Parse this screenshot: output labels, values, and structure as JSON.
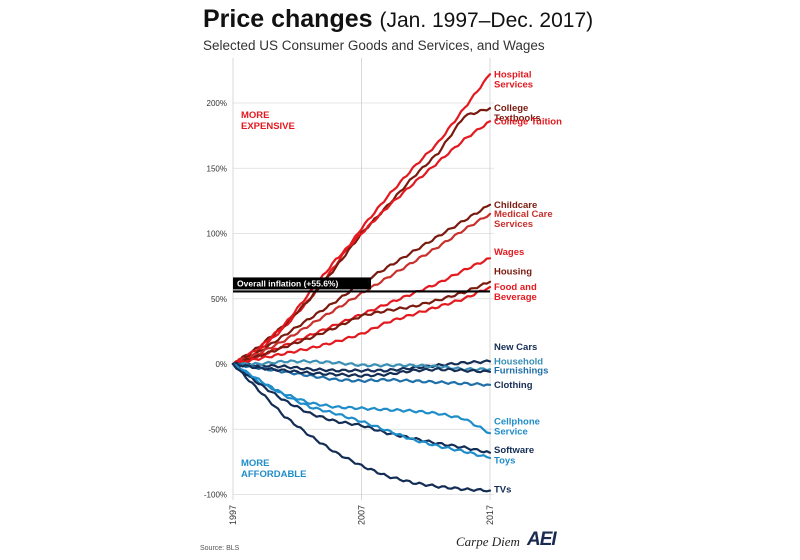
{
  "header": {
    "title_main": "Price changes",
    "title_range": "(Jan. 1997–Dec. 2017)",
    "subtitle": "Selected US Consumer Goods and Services, and Wages"
  },
  "footer": {
    "source": "Source: BLS",
    "brand": "Carpe Diem",
    "logo": "AEI"
  },
  "chart_data": {
    "type": "line",
    "title": "Price changes (Jan. 1997–Dec. 2017)",
    "subtitle": "Selected US Consumer Goods and Services, and Wages",
    "xlim": [
      1997,
      2017
    ],
    "ylim": [
      -100,
      230
    ],
    "y_ticks": [
      -100,
      -50,
      0,
      50,
      100,
      150,
      200
    ],
    "y_tick_labels": [
      "-100%",
      "-50%",
      "0%",
      "50%",
      "100%",
      "150%",
      "200%"
    ],
    "x_ticks": [
      1997,
      2007,
      2017
    ],
    "x_tick_labels": [
      "1997",
      "2007",
      "2017"
    ],
    "grid": true,
    "legend": "direct labels at right end of lines",
    "zones": {
      "expensive": "MORE\nEXPENSIVE",
      "affordable": "MORE\nAFFORDABLE"
    },
    "zone_colors": {
      "expensive": "#e3191f",
      "affordable": "#1f8dc9"
    },
    "reference_line": {
      "label": "Overall inflation (+55.6%)",
      "value": 55.6,
      "color": "#000000"
    },
    "x": [
      1997,
      1999,
      2001,
      2003,
      2005,
      2007,
      2009,
      2011,
      2013,
      2015,
      2017
    ],
    "series": [
      {
        "name": "Hospital\nServices",
        "color": "#e3191f",
        "label_y": 222,
        "values": [
          0,
          10,
          28,
          50,
          76,
          104,
          128,
          150,
          170,
          196,
          222
        ]
      },
      {
        "name": "College\nTextbooks",
        "color": "#7a1a0f",
        "label_y": 196,
        "values": [
          0,
          13,
          30,
          50,
          74,
          100,
          121,
          143,
          162,
          190,
          196
        ]
      },
      {
        "name": "College Tuition",
        "color": "#e3191f",
        "label_y": 186,
        "values": [
          0,
          12,
          30,
          55,
          80,
          100,
          120,
          138,
          155,
          172,
          186
        ]
      },
      {
        "name": "Childcare",
        "color": "#7a1a0f",
        "label_y": 122,
        "values": [
          0,
          9,
          22,
          35,
          48,
          62,
          74,
          86,
          98,
          110,
          122
        ]
      },
      {
        "name": "Medical Care\nServices",
        "color": "#c8302c",
        "label_y": 115,
        "values": [
          0,
          8,
          18,
          30,
          42,
          54,
          66,
          78,
          90,
          103,
          115
        ]
      },
      {
        "name": "Wages",
        "color": "#e3191f",
        "label_y": 86,
        "values": [
          0,
          6,
          14,
          22,
          30,
          38,
          46,
          54,
          62,
          72,
          81
        ]
      },
      {
        "name": "Housing",
        "color": "#7a1a0f",
        "label_y": 71,
        "values": [
          0,
          6,
          13,
          20,
          28,
          37,
          41,
          44,
          49,
          55,
          63
        ]
      },
      {
        "name": "Food and\nBeverage",
        "color": "#e3191f",
        "label_y": 59,
        "values": [
          0,
          4,
          8,
          12,
          17,
          23,
          32,
          38,
          44,
          50,
          59
        ]
      },
      {
        "name": "New Cars",
        "color": "#142d55",
        "label_y": 13,
        "values": [
          0,
          -1,
          -2,
          -4,
          -5,
          -5,
          -5,
          -3,
          -1,
          1,
          2
        ]
      },
      {
        "name": "Household",
        "color": "#3a8fb5",
        "label_y": 2,
        "values": [
          0,
          0,
          2,
          2,
          1,
          -1,
          -1,
          -1,
          -2,
          -4,
          -4
        ]
      },
      {
        "name": "Furnishings",
        "color": "#1f6fa8",
        "label_y": -5,
        "values": [
          0,
          -3,
          -6,
          -9,
          -12,
          -13,
          -12,
          -13,
          -14,
          -15,
          -16
        ]
      },
      {
        "name": "Clothing",
        "color": "#142d55",
        "label_y": -16,
        "values": [
          0,
          -3,
          -5,
          -7,
          -8,
          -9,
          -8,
          -5,
          -4,
          -5,
          -6
        ]
      },
      {
        "name": "Cellphone\nService",
        "color": "#1f8dc9",
        "label_y": -44,
        "values": [
          0,
          -14,
          -23,
          -30,
          -33,
          -34,
          -35,
          -36,
          -38,
          -42,
          -53
        ]
      },
      {
        "name": "Software",
        "color": "#142d55",
        "label_y": -66,
        "values": [
          0,
          -15,
          -28,
          -38,
          -44,
          -47,
          -53,
          -57,
          -61,
          -64,
          -68
        ]
      },
      {
        "name": "Toys",
        "color": "#1f8dc9",
        "label_y": -74,
        "values": [
          0,
          -12,
          -24,
          -33,
          -38,
          -44,
          -51,
          -58,
          -63,
          -67,
          -72
        ]
      },
      {
        "name": "TVs",
        "color": "#142d55",
        "label_y": -96,
        "values": [
          0,
          -20,
          -40,
          -55,
          -68,
          -78,
          -86,
          -91,
          -94,
          -96,
          -97
        ]
      }
    ]
  }
}
